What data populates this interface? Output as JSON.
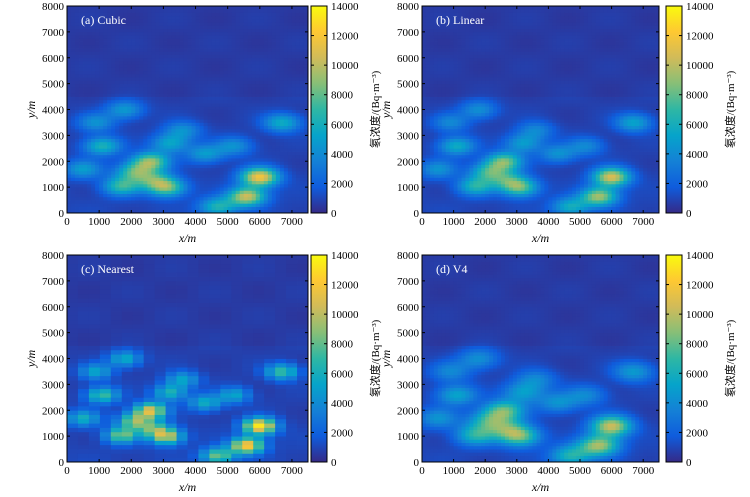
{
  "chart_data": [
    {
      "type": "heatmap",
      "panel_label": "(a) Cubic",
      "xlabel": "x/m",
      "ylabel": "y/m",
      "xlim": [
        0,
        7500
      ],
      "ylim": [
        0,
        8000
      ],
      "xticks": [
        "0",
        "1000",
        "2000",
        "3000",
        "4000",
        "5000",
        "6000",
        "7000"
      ],
      "yticks": [
        "0",
        "1000",
        "2000",
        "3000",
        "4000",
        "5000",
        "6000",
        "7000",
        "8000"
      ],
      "colorbar_label": "氡浓度/(Bq·m⁻³)",
      "colorbar_range": [
        0,
        14000
      ],
      "colorbar_ticks": [
        "0",
        "2000",
        "4000",
        "6000",
        "8000",
        "10000",
        "12000",
        "14000"
      ],
      "grid": false,
      "interpolation": "cubic",
      "hotspots": [
        {
          "x": 6000,
          "y": 1400,
          "value": 11000
        },
        {
          "x": 5600,
          "y": 650,
          "value": 9500
        },
        {
          "x": 2600,
          "y": 2000,
          "value": 8000
        },
        {
          "x": 3100,
          "y": 1000,
          "value": 7500
        },
        {
          "x": 1700,
          "y": 1050,
          "value": 6000
        },
        {
          "x": 2100,
          "y": 1600,
          "value": 6000
        },
        {
          "x": 1100,
          "y": 2600,
          "value": 5500
        },
        {
          "x": 4700,
          "y": 250,
          "value": 5500
        },
        {
          "x": 3200,
          "y": 2700,
          "value": 4500
        },
        {
          "x": 6700,
          "y": 3500,
          "value": 5000
        },
        {
          "x": 4300,
          "y": 2300,
          "value": 4000
        },
        {
          "x": 1800,
          "y": 4000,
          "value": 4000
        },
        {
          "x": 900,
          "y": 3500,
          "value": 3500
        },
        {
          "x": 3600,
          "y": 3200,
          "value": 3500
        },
        {
          "x": 5200,
          "y": 2600,
          "value": 3500
        },
        {
          "x": 500,
          "y": 1700,
          "value": 4000
        },
        {
          "x": 2700,
          "y": 1300,
          "value": 5000
        }
      ]
    },
    {
      "type": "heatmap",
      "panel_label": "(b) Linear",
      "xlabel": "x/m",
      "ylabel": "y/m",
      "xlim": [
        0,
        7500
      ],
      "ylim": [
        0,
        8000
      ],
      "xticks": [
        "0",
        "1000",
        "2000",
        "3000",
        "4000",
        "5000",
        "6000",
        "7000"
      ],
      "yticks": [
        "0",
        "1000",
        "2000",
        "3000",
        "4000",
        "5000",
        "6000",
        "7000",
        "8000"
      ],
      "colorbar_label": "氡浓度/(Bq·m⁻³)",
      "colorbar_range": [
        0,
        14000
      ],
      "colorbar_ticks": [
        "0",
        "2000",
        "4000",
        "6000",
        "8000",
        "10000",
        "12000",
        "14000"
      ],
      "grid": false,
      "interpolation": "linear",
      "hotspots": [
        {
          "x": 6000,
          "y": 1400,
          "value": 10000
        },
        {
          "x": 5600,
          "y": 650,
          "value": 8500
        },
        {
          "x": 2600,
          "y": 2000,
          "value": 7500
        },
        {
          "x": 3100,
          "y": 1000,
          "value": 7000
        },
        {
          "x": 1700,
          "y": 1050,
          "value": 5500
        },
        {
          "x": 2100,
          "y": 1600,
          "value": 5500
        },
        {
          "x": 1100,
          "y": 2600,
          "value": 5000
        },
        {
          "x": 4700,
          "y": 250,
          "value": 5000
        },
        {
          "x": 3200,
          "y": 2700,
          "value": 4000
        },
        {
          "x": 6700,
          "y": 3500,
          "value": 4500
        },
        {
          "x": 4300,
          "y": 2300,
          "value": 3500
        },
        {
          "x": 1800,
          "y": 4000,
          "value": 3500
        },
        {
          "x": 900,
          "y": 3500,
          "value": 3000
        },
        {
          "x": 3600,
          "y": 3200,
          "value": 3000
        },
        {
          "x": 5200,
          "y": 2600,
          "value": 3000
        },
        {
          "x": 500,
          "y": 1700,
          "value": 3500
        },
        {
          "x": 2700,
          "y": 1300,
          "value": 4500
        }
      ]
    },
    {
      "type": "heatmap",
      "panel_label": "(c) Nearest",
      "xlabel": "x/m",
      "ylabel": "y/m",
      "xlim": [
        0,
        7500
      ],
      "ylim": [
        0,
        8000
      ],
      "xticks": [
        "0",
        "1000",
        "2000",
        "3000",
        "4000",
        "5000",
        "6000",
        "7000"
      ],
      "yticks": [
        "0",
        "1000",
        "2000",
        "3000",
        "4000",
        "5000",
        "6000",
        "7000",
        "8000"
      ],
      "colorbar_label": "氡浓度/(Bq·m⁻³)",
      "colorbar_range": [
        0,
        14000
      ],
      "colorbar_ticks": [
        "0",
        "2000",
        "4000",
        "6000",
        "8000",
        "10000",
        "12000",
        "14000"
      ],
      "grid": false,
      "interpolation": "nearest",
      "hotspots": [
        {
          "x": 6000,
          "y": 1400,
          "value": 12500
        },
        {
          "x": 5600,
          "y": 650,
          "value": 11500
        },
        {
          "x": 2600,
          "y": 2000,
          "value": 10000
        },
        {
          "x": 3100,
          "y": 1000,
          "value": 9000
        },
        {
          "x": 1700,
          "y": 1050,
          "value": 7500
        },
        {
          "x": 2100,
          "y": 1600,
          "value": 7500
        },
        {
          "x": 1100,
          "y": 2600,
          "value": 6500
        },
        {
          "x": 4700,
          "y": 250,
          "value": 7500
        },
        {
          "x": 3200,
          "y": 2700,
          "value": 5500
        },
        {
          "x": 6700,
          "y": 3500,
          "value": 6500
        },
        {
          "x": 4300,
          "y": 2300,
          "value": 5000
        },
        {
          "x": 1800,
          "y": 4000,
          "value": 5000
        },
        {
          "x": 900,
          "y": 3500,
          "value": 4500
        },
        {
          "x": 3600,
          "y": 3200,
          "value": 4500
        },
        {
          "x": 5200,
          "y": 2600,
          "value": 4500
        },
        {
          "x": 500,
          "y": 1700,
          "value": 5000
        },
        {
          "x": 2700,
          "y": 1300,
          "value": 6000
        }
      ]
    },
    {
      "type": "heatmap",
      "panel_label": "(d) V4",
      "xlabel": "x/m",
      "ylabel": "y/m",
      "xlim": [
        0,
        7500
      ],
      "ylim": [
        0,
        8000
      ],
      "xticks": [
        "0",
        "1000",
        "2000",
        "3000",
        "4000",
        "5000",
        "6000",
        "7000"
      ],
      "yticks": [
        "0",
        "1000",
        "2000",
        "3000",
        "4000",
        "5000",
        "6000",
        "7000",
        "8000"
      ],
      "colorbar_label": "氡浓度/(Bq·m⁻³)",
      "colorbar_range": [
        0,
        14000
      ],
      "colorbar_ticks": [
        "0",
        "2000",
        "4000",
        "6000",
        "8000",
        "10000",
        "12000",
        "14000"
      ],
      "grid": false,
      "interpolation": "v4",
      "hotspots": [
        {
          "x": 6000,
          "y": 1400,
          "value": 9500
        },
        {
          "x": 5600,
          "y": 650,
          "value": 8500
        },
        {
          "x": 2600,
          "y": 2000,
          "value": 7000
        },
        {
          "x": 3100,
          "y": 1000,
          "value": 7000
        },
        {
          "x": 1700,
          "y": 1050,
          "value": 5500
        },
        {
          "x": 2100,
          "y": 1600,
          "value": 5000
        },
        {
          "x": 1100,
          "y": 2600,
          "value": 4500
        },
        {
          "x": 4700,
          "y": 250,
          "value": 5500
        },
        {
          "x": 3200,
          "y": 2700,
          "value": 4000
        },
        {
          "x": 6700,
          "y": 3500,
          "value": 4000
        },
        {
          "x": 4300,
          "y": 2300,
          "value": 3500
        },
        {
          "x": 1800,
          "y": 4000,
          "value": 3500
        },
        {
          "x": 900,
          "y": 3500,
          "value": 3000
        },
        {
          "x": 3600,
          "y": 3200,
          "value": 3000
        },
        {
          "x": 5200,
          "y": 2600,
          "value": 3000
        },
        {
          "x": 500,
          "y": 1700,
          "value": 3500
        },
        {
          "x": 2700,
          "y": 1300,
          "value": 4500
        }
      ]
    }
  ],
  "colormap": [
    "#352a87",
    "#0f5cdd",
    "#1481d6",
    "#06a4ca",
    "#2eb7a4",
    "#87bf77",
    "#d1bb59",
    "#fec832",
    "#f9fb0e"
  ]
}
